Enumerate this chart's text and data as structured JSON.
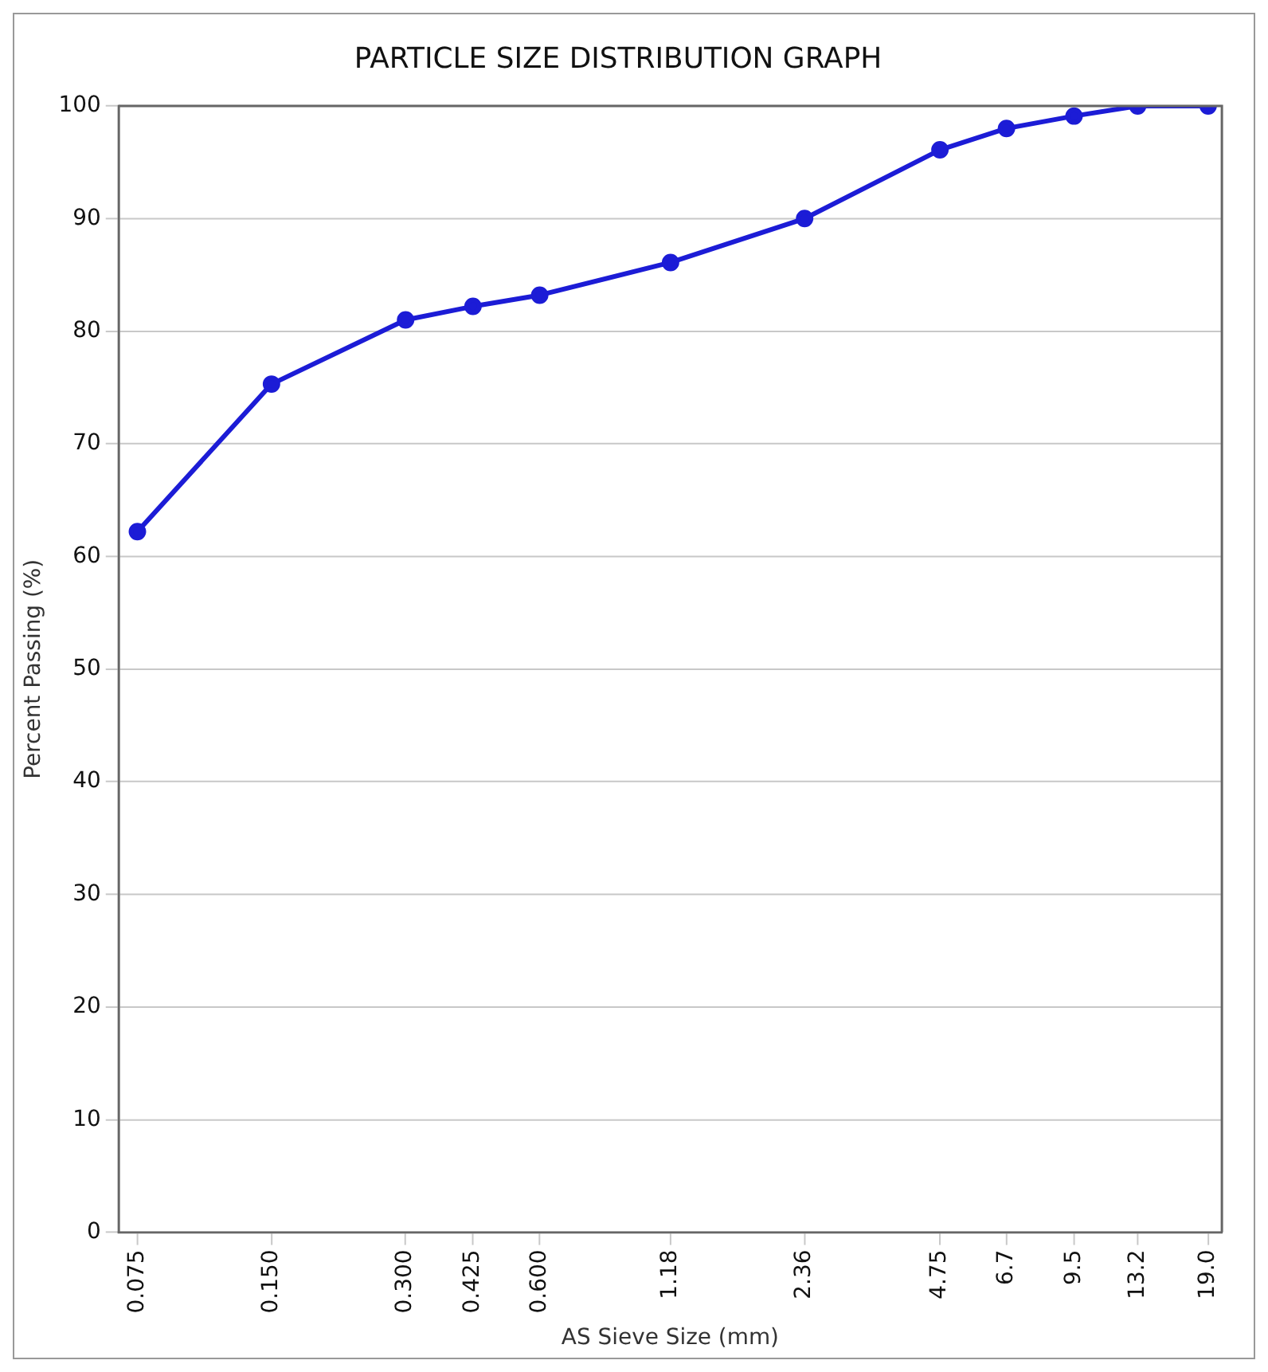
{
  "chart_data": {
    "type": "line",
    "title": "PARTICLE SIZE DISTRIBUTION GRAPH",
    "xlabel": "AS Sieve Size (mm)",
    "ylabel": "Percent Passing (%)",
    "x": [
      0.075,
      0.15,
      0.3,
      0.425,
      0.6,
      1.18,
      2.36,
      4.75,
      6.7,
      9.5,
      13.2,
      19.0
    ],
    "series": [
      {
        "color": "#1c1cd6",
        "values": [
          62.2,
          75.3,
          81,
          82.2,
          83.2,
          86.1,
          90,
          96.1,
          98,
          99.1,
          100,
          100
        ]
      }
    ],
    "log": "x",
    "xlim": [
      0.068,
      20.4
    ],
    "xticks": [
      {
        "value": 0.075,
        "label": "0.075"
      },
      {
        "value": 0.15,
        "label": "0.150"
      },
      {
        "value": 0.3,
        "label": "0.300"
      },
      {
        "value": 0.425,
        "label": "0.425"
      },
      {
        "value": 0.6,
        "label": "0.600"
      },
      1.18,
      2.36,
      4.75,
      6.7,
      9.5,
      13.2,
      {
        "value": 19.0,
        "label": "19.0"
      }
    ],
    "ylim": [
      0,
      100
    ],
    "yticks": [
      0,
      10,
      20,
      30,
      40,
      50,
      60,
      70,
      80,
      90,
      100
    ],
    "grid": "y",
    "legend": false,
    "marker": "circle",
    "line_style": "solid"
  }
}
